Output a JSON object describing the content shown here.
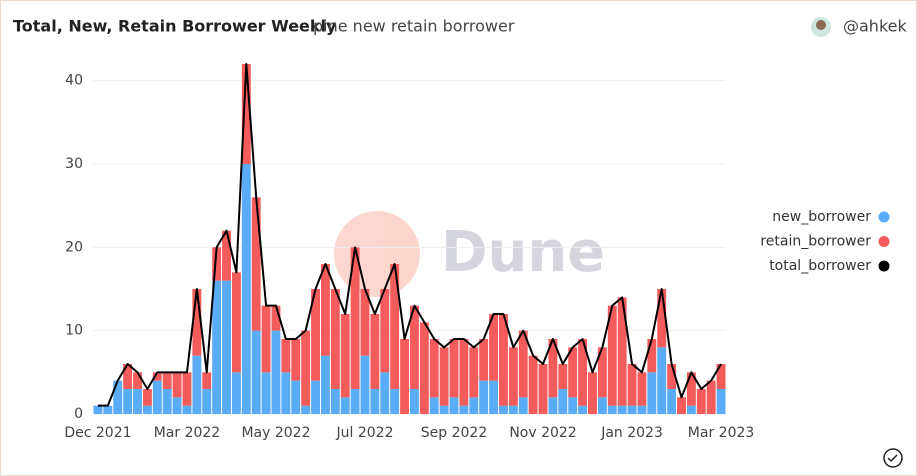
{
  "header": {
    "title": "Total, New, Retain Borrower Weekly",
    "subtitle": "pine new retain borrower",
    "author": "@ahkek"
  },
  "watermark": "Dune",
  "chart_data": {
    "type": "stacked-bar-line",
    "categories": [
      "Dec 2021",
      null,
      null,
      null,
      null,
      null,
      null,
      null,
      null,
      "Mar 2022",
      null,
      null,
      null,
      null,
      null,
      null,
      null,
      null,
      "May 2022",
      null,
      null,
      null,
      null,
      null,
      null,
      null,
      null,
      "Jul 2022",
      null,
      null,
      null,
      null,
      null,
      null,
      null,
      null,
      "Sep 2022",
      null,
      null,
      null,
      null,
      null,
      null,
      null,
      null,
      "Nov 2022",
      null,
      null,
      null,
      null,
      null,
      null,
      null,
      null,
      "Jan 2023",
      null,
      null,
      null,
      null,
      null,
      null,
      null,
      null,
      "Mar 2023"
    ],
    "series": [
      {
        "name": "new_borrower",
        "color": "#5aacf7",
        "kind": "bar",
        "values": [
          1,
          1,
          4,
          3,
          3,
          1,
          4,
          3,
          2,
          1,
          7,
          3,
          16,
          16,
          5,
          30,
          10,
          5,
          10,
          5,
          4,
          1,
          4,
          7,
          3,
          2,
          3,
          7,
          3,
          5,
          3,
          0,
          3,
          0,
          2,
          1,
          2,
          1,
          2,
          4,
          4,
          1,
          1,
          2,
          0,
          0,
          2,
          3,
          2,
          1,
          0,
          2,
          1,
          1,
          1,
          1,
          5,
          8,
          3,
          0,
          1,
          0,
          0,
          3
        ]
      },
      {
        "name": "retain_borrower",
        "color": "#f45b5b",
        "kind": "bar",
        "values": [
          0,
          0,
          0,
          3,
          2,
          2,
          1,
          2,
          3,
          4,
          8,
          2,
          4,
          6,
          12,
          12,
          16,
          8,
          3,
          4,
          5,
          9,
          11,
          11,
          12,
          10,
          17,
          8,
          9,
          10,
          15,
          9,
          10,
          11,
          7,
          7,
          7,
          8,
          6,
          5,
          8,
          11,
          7,
          8,
          7,
          6,
          7,
          3,
          6,
          8,
          5,
          6,
          12,
          13,
          5,
          4,
          4,
          7,
          3,
          2,
          4,
          3,
          4,
          3
        ]
      },
      {
        "name": "total_borrower",
        "color": "#000000",
        "kind": "line",
        "values": [
          1,
          1,
          4,
          6,
          5,
          3,
          5,
          5,
          5,
          5,
          15,
          5,
          20,
          22,
          17,
          42,
          26,
          13,
          13,
          9,
          9,
          10,
          15,
          18,
          15,
          12,
          20,
          15,
          12,
          15,
          18,
          9,
          13,
          11,
          9,
          8,
          9,
          9,
          8,
          9,
          12,
          12,
          8,
          10,
          7,
          6,
          9,
          6,
          8,
          9,
          5,
          8,
          13,
          14,
          6,
          5,
          9,
          15,
          6,
          2,
          5,
          3,
          4,
          6
        ]
      }
    ],
    "ylim": [
      0,
      42
    ],
    "yticks": [
      0,
      10,
      20,
      30,
      40
    ],
    "grid": true,
    "legend": "right"
  }
}
